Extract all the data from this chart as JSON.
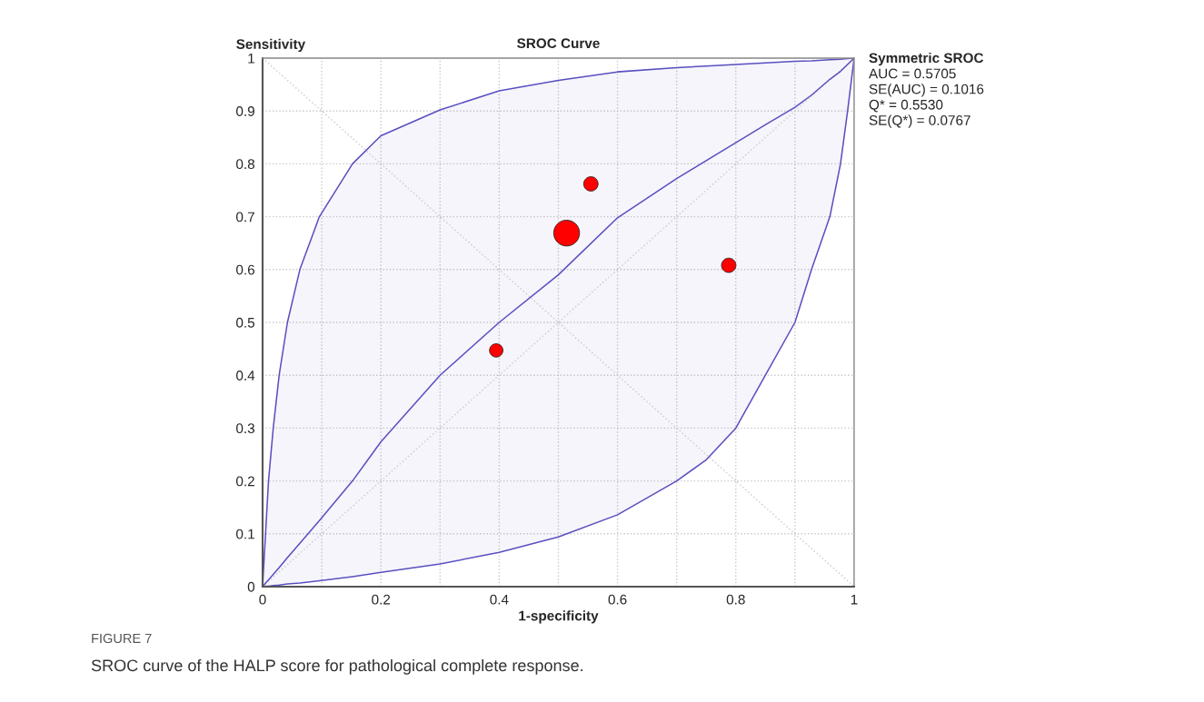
{
  "chart_data": {
    "type": "line",
    "title": "SROC Curve",
    "xlabel": "1-specificity",
    "ylabel": "Sensitivity",
    "xlim": [
      0,
      1
    ],
    "ylim": [
      0,
      1
    ],
    "xticks": [
      0,
      {
        "value": 0.1,
        "label": null
      },
      0.2,
      {
        "value": 0.3,
        "label": null
      },
      0.4,
      {
        "value": 0.5,
        "label": null
      },
      0.6,
      {
        "value": 0.7,
        "label": null
      },
      0.8,
      {
        "value": 0.9,
        "label": null
      },
      1
    ],
    "yticks": [
      0,
      0.1,
      0.2,
      0.3,
      0.4,
      0.5,
      0.6,
      0.7,
      0.8,
      0.9,
      1
    ],
    "grid": true,
    "series": [
      {
        "color": "#d0d0d0",
        "line_style": "dotted",
        "x": [
          0,
          1
        ],
        "values": [
          0,
          1
        ]
      },
      {
        "color": "#d0d0d0",
        "line_style": "dotted",
        "x": [
          0,
          1
        ],
        "values": [
          1,
          0
        ]
      },
      {
        "color": "#5a4fc0",
        "line_style": "solid",
        "x": [
          0,
          0.005,
          0.01,
          0.018,
          0.028,
          0.042,
          0.063,
          0.096,
          0.152,
          0.2,
          0.3,
          0.4,
          0.5,
          0.6,
          0.7,
          0.75,
          0.8,
          0.85,
          0.9,
          0.928,
          0.959,
          0.977,
          0.989,
          1
        ],
        "values": [
          0,
          0.007,
          0.013,
          0.023,
          0.036,
          0.055,
          0.082,
          0.125,
          0.2,
          0.274,
          0.4,
          0.5,
          0.59,
          0.698,
          0.772,
          0.806,
          0.84,
          0.874,
          0.907,
          0.93,
          0.96,
          0.975,
          0.988,
          1
        ],
        "upper": [
          0,
          0.1,
          0.2,
          0.3,
          0.4,
          0.5,
          0.6,
          0.7,
          0.8,
          0.853,
          0.902,
          0.938,
          0.958,
          0.974,
          0.982,
          0.985,
          0.988,
          0.991,
          0.994,
          0.995,
          0.997,
          0.998,
          0.999,
          1
        ],
        "lower": [
          0,
          0.001,
          0.001,
          0.002,
          0.003,
          0.005,
          0.007,
          0.011,
          0.019,
          0.027,
          0.043,
          0.065,
          0.094,
          0.136,
          0.2,
          0.24,
          0.3,
          0.4,
          0.5,
          0.6,
          0.7,
          0.8,
          0.9,
          1
        ]
      },
      {
        "type": "bubble",
        "color": "#ff0000",
        "x": [
          0.395,
          0.514,
          0.555,
          0.788
        ],
        "values": [
          0.447,
          0.669,
          0.762,
          0.608
        ],
        "sizes": [
          0.27,
          1,
          0.31,
          0.31
        ]
      }
    ],
    "annotations": [
      "Symmetric SROC",
      "AUC = 0.5705",
      "SE(AUC) = 0.1016",
      "Q* = 0.5530",
      "SE(Q*) = 0.0767",
      "FIGURE 7",
      "SROC curve of the HALP score for pathological complete response."
    ]
  }
}
